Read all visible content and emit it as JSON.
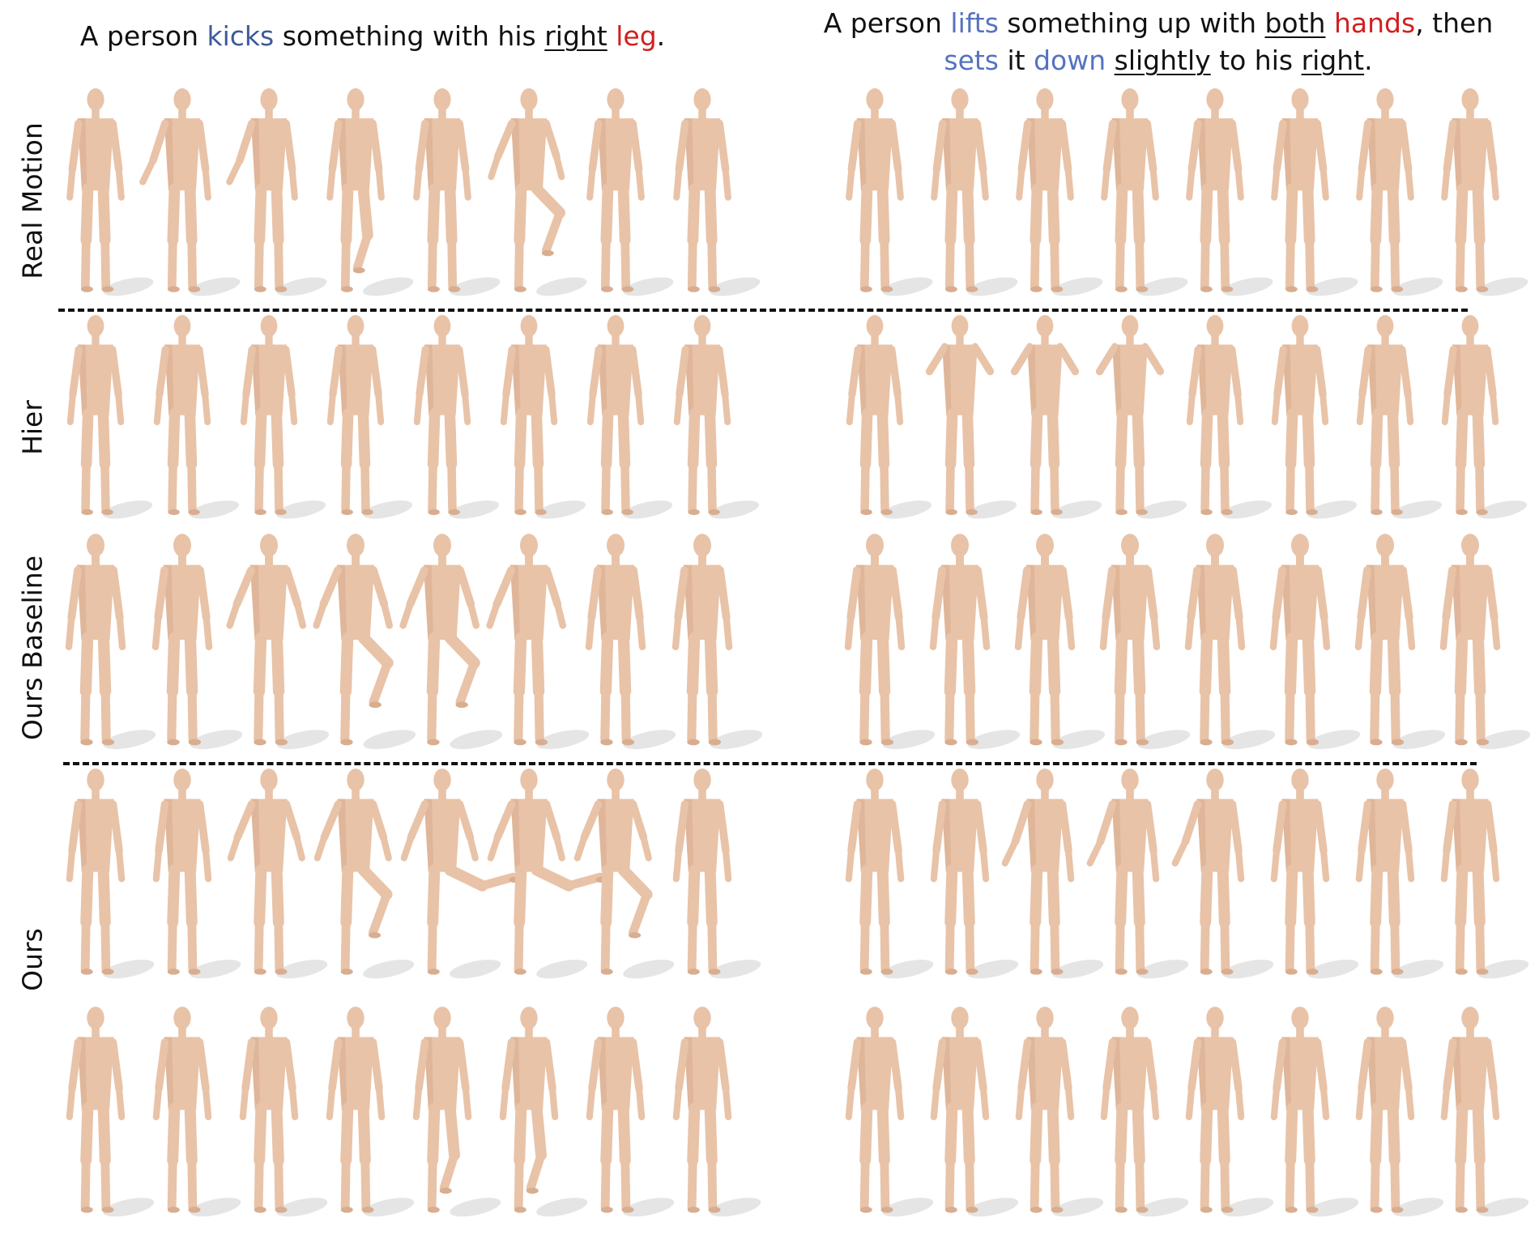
{
  "captions": {
    "left": [
      {
        "text": "A person ",
        "color": "#111111",
        "u": false
      },
      {
        "text": "kicks",
        "color": "#3c5a9a",
        "u": false
      },
      {
        "text": " something with his ",
        "color": "#111111",
        "u": false
      },
      {
        "text": "right",
        "color": "#111111",
        "u": true
      },
      {
        "text": " ",
        "color": "#111111",
        "u": false
      },
      {
        "text": "leg",
        "color": "#d21f1f",
        "u": false
      },
      {
        "text": ".",
        "color": "#111111",
        "u": false
      }
    ],
    "right_line1": [
      {
        "text": "A person ",
        "color": "#111111",
        "u": false
      },
      {
        "text": "lifts",
        "color": "#5572c0",
        "u": false
      },
      {
        "text": " something up with ",
        "color": "#111111",
        "u": false
      },
      {
        "text": "both",
        "color": "#111111",
        "u": true
      },
      {
        "text": " ",
        "color": "#111111",
        "u": false
      },
      {
        "text": "hands",
        "color": "#d21f1f",
        "u": false
      },
      {
        "text": ", then",
        "color": "#111111",
        "u": false
      }
    ],
    "right_line2": [
      {
        "text": "sets",
        "color": "#5572c0",
        "u": false
      },
      {
        "text": " it ",
        "color": "#111111",
        "u": false
      },
      {
        "text": "down",
        "color": "#5572c0",
        "u": false
      },
      {
        "text": " ",
        "color": "#111111",
        "u": false
      },
      {
        "text": "slightly",
        "color": "#111111",
        "u": true
      },
      {
        "text": " to his ",
        "color": "#111111",
        "u": false
      },
      {
        "text": "right",
        "color": "#111111",
        "u": true
      },
      {
        "text": ".",
        "color": "#111111",
        "u": false
      }
    ]
  },
  "row_labels": {
    "real": "Real Motion",
    "hier": "Hier",
    "baseline": "Ours Baseline",
    "ours": "Ours"
  },
  "colors": {
    "skin": "#e8c3a8",
    "skin_shade": "#d9ad8f",
    "shadow": "#cfcfcf",
    "divider": "#111111"
  },
  "figure_panels": [
    {
      "panel": "left",
      "row": "real",
      "poses": [
        "stand",
        "arm-out",
        "arm-out",
        "leg-back",
        "stand",
        "knee-up",
        "stand",
        "stand"
      ]
    },
    {
      "panel": "right",
      "row": "real",
      "poses": [
        "stand",
        "stand",
        "stand",
        "stand",
        "stand",
        "stand",
        "stand",
        "stand"
      ]
    },
    {
      "panel": "left",
      "row": "hier",
      "poses": [
        "stand",
        "stand",
        "stand",
        "stand",
        "stand",
        "stand",
        "stand",
        "stand"
      ]
    },
    {
      "panel": "right",
      "row": "hier",
      "poses": [
        "stand",
        "arms-up",
        "arms-up",
        "arms-up",
        "stand",
        "stand",
        "stand",
        "stand"
      ]
    },
    {
      "panel": "left",
      "row": "baseline",
      "poses": [
        "stand",
        "stand",
        "lean",
        "knee-up",
        "knee-up",
        "lean",
        "stand",
        "stand"
      ]
    },
    {
      "panel": "right",
      "row": "baseline",
      "poses": [
        "stand",
        "stand",
        "stand",
        "stand",
        "stand",
        "stand",
        "stand",
        "stand"
      ]
    },
    {
      "panel": "left",
      "row": "ours1",
      "poses": [
        "stand",
        "stand",
        "lean",
        "knee-up",
        "kick",
        "kick",
        "knee-up",
        "stand"
      ]
    },
    {
      "panel": "right",
      "row": "ours1",
      "poses": [
        "stand",
        "stand",
        "arm-out",
        "arm-out",
        "arm-out",
        "stand",
        "stand",
        "stand"
      ]
    },
    {
      "panel": "left",
      "row": "ours2",
      "poses": [
        "stand",
        "stand",
        "stand",
        "stand",
        "leg-back",
        "leg-back",
        "stand",
        "stand"
      ]
    },
    {
      "panel": "right",
      "row": "ours2",
      "poses": [
        "stand",
        "stand",
        "stand",
        "stand",
        "stand",
        "stand",
        "stand",
        "stand"
      ]
    }
  ]
}
